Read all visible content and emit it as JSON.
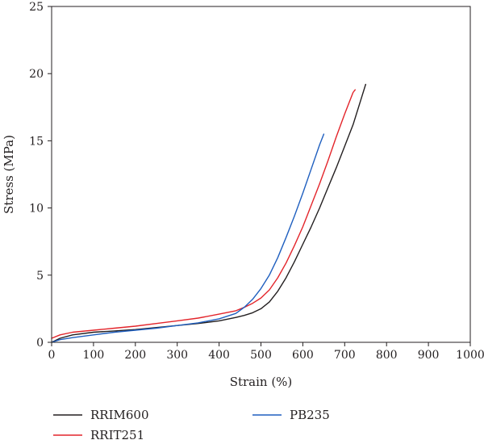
{
  "chart_data": {
    "type": "line",
    "title": "",
    "xlabel": "Strain (%)",
    "ylabel": "Stress (MPa)",
    "xlim": [
      0,
      1000
    ],
    "ylim": [
      0,
      25
    ],
    "xticks": [
      0,
      100,
      200,
      300,
      400,
      500,
      600,
      700,
      800,
      900,
      1000
    ],
    "yticks": [
      0,
      5,
      10,
      15,
      20,
      25
    ],
    "grid": false,
    "legend_position": "below",
    "series": [
      {
        "name": "RRIM600",
        "color": "#231f20",
        "x": [
          0,
          20,
          50,
          100,
          150,
          200,
          250,
          300,
          350,
          400,
          440,
          460,
          480,
          500,
          520,
          540,
          560,
          580,
          600,
          620,
          640,
          660,
          680,
          700,
          720,
          740,
          750
        ],
        "y": [
          0,
          0.3,
          0.55,
          0.75,
          0.85,
          0.95,
          1.1,
          1.25,
          1.4,
          1.6,
          1.85,
          2.0,
          2.2,
          2.5,
          3.0,
          3.8,
          4.8,
          6.0,
          7.3,
          8.6,
          10.0,
          11.5,
          13.0,
          14.6,
          16.2,
          18.2,
          19.2
        ]
      },
      {
        "name": "RRIT251",
        "color": "#e3252b",
        "x": [
          0,
          20,
          50,
          100,
          150,
          200,
          250,
          300,
          350,
          400,
          440,
          460,
          480,
          500,
          520,
          540,
          560,
          580,
          600,
          620,
          640,
          660,
          680,
          700,
          720,
          725
        ],
        "y": [
          0.3,
          0.55,
          0.75,
          0.9,
          1.05,
          1.2,
          1.4,
          1.6,
          1.8,
          2.1,
          2.35,
          2.6,
          2.9,
          3.3,
          3.9,
          4.8,
          5.9,
          7.2,
          8.6,
          10.2,
          11.8,
          13.5,
          15.3,
          17.0,
          18.6,
          18.8
        ]
      },
      {
        "name": "PB235",
        "color": "#1f5fbf",
        "x": [
          0,
          20,
          50,
          100,
          150,
          200,
          250,
          300,
          350,
          400,
          440,
          460,
          480,
          500,
          520,
          540,
          560,
          580,
          600,
          620,
          640,
          650
        ],
        "y": [
          0,
          0.2,
          0.35,
          0.55,
          0.75,
          0.9,
          1.05,
          1.25,
          1.45,
          1.75,
          2.15,
          2.6,
          3.2,
          4.0,
          5.0,
          6.3,
          7.8,
          9.4,
          11.1,
          12.9,
          14.7,
          15.5
        ]
      }
    ]
  }
}
